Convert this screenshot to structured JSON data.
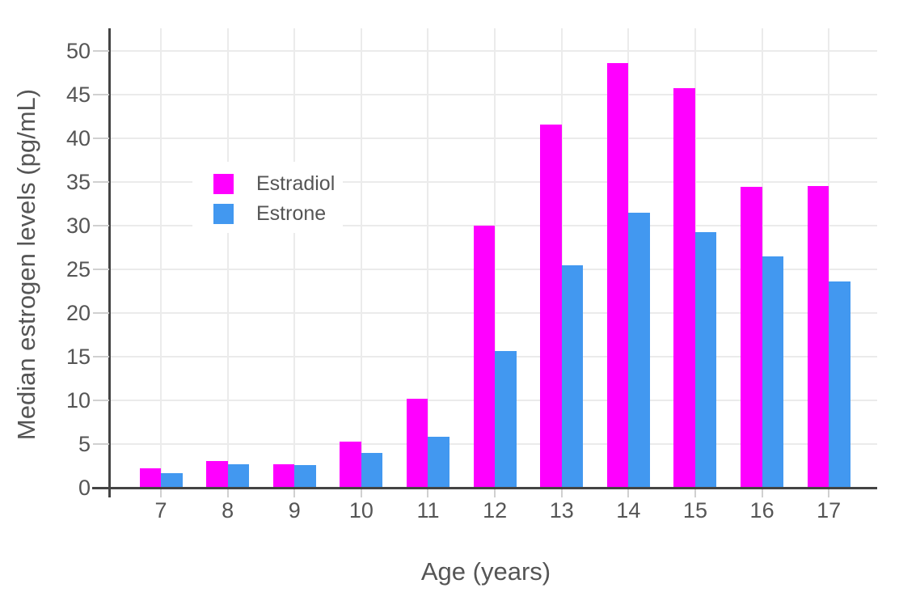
{
  "chart_data": {
    "type": "bar",
    "categories": [
      "7",
      "8",
      "9",
      "10",
      "11",
      "12",
      "13",
      "14",
      "15",
      "16",
      "17"
    ],
    "series": [
      {
        "name": "Estradiol",
        "color": "#ff00ff",
        "values": [
          2.2,
          3.1,
          2.7,
          5.3,
          10.2,
          30.0,
          41.6,
          48.6,
          45.8,
          34.5,
          34.6
        ]
      },
      {
        "name": "Estrone",
        "color": "#4298f0",
        "values": [
          1.7,
          2.7,
          2.6,
          4.0,
          5.8,
          15.7,
          25.5,
          31.5,
          29.3,
          26.5,
          23.6
        ]
      }
    ],
    "xlabel": "Age (years)",
    "ylabel": "Median estrogen levels (pg/mL)",
    "ylim": [
      0,
      52.5
    ],
    "yticks": [
      0,
      5,
      10,
      15,
      20,
      25,
      30,
      35,
      40,
      45,
      50
    ],
    "grid": true,
    "legend_position": "inside-upper-left",
    "background": "#ffffff",
    "appearance": {
      "axis_line_color": "#444444",
      "gridline_color": "#ebebeb",
      "tick_mark_color": "#d0d0d0",
      "text_color": "#555555"
    }
  }
}
